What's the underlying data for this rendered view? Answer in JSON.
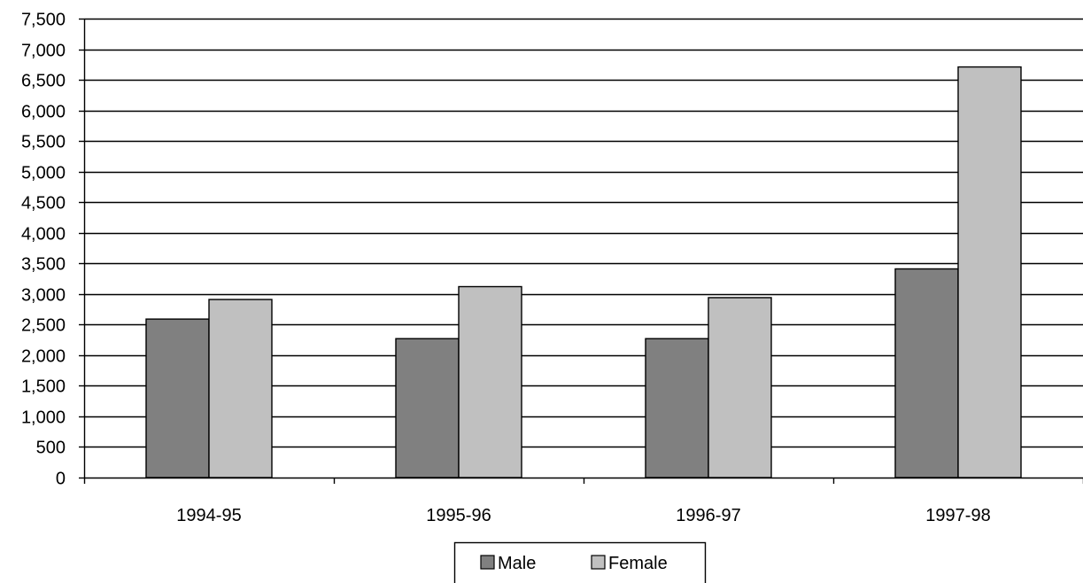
{
  "chart_data": {
    "type": "bar",
    "title": "",
    "xlabel": "",
    "ylabel": "",
    "categories": [
      "1994-95",
      "1995-96",
      "1996-97",
      "1997-98"
    ],
    "series": [
      {
        "name": "Male",
        "values": [
          2590,
          2270,
          2270,
          3410
        ],
        "color": "#808080"
      },
      {
        "name": "Female",
        "values": [
          2910,
          3120,
          2940,
          6710
        ],
        "color": "#c0c0c0"
      }
    ],
    "ylim": [
      0,
      7500
    ],
    "yticks": [
      0,
      500,
      1000,
      1500,
      2000,
      2500,
      3000,
      3500,
      4000,
      4500,
      5000,
      5500,
      6000,
      6500,
      7000,
      7500
    ],
    "ytick_labels": [
      "0",
      "500",
      "1,000",
      "1,500",
      "2,000",
      "2,500",
      "3,000",
      "3,500",
      "4,000",
      "4,500",
      "5,000",
      "5,500",
      "6,000",
      "6,500",
      "7,000",
      "7,500"
    ],
    "grid": true,
    "legend_position": "bottom"
  }
}
